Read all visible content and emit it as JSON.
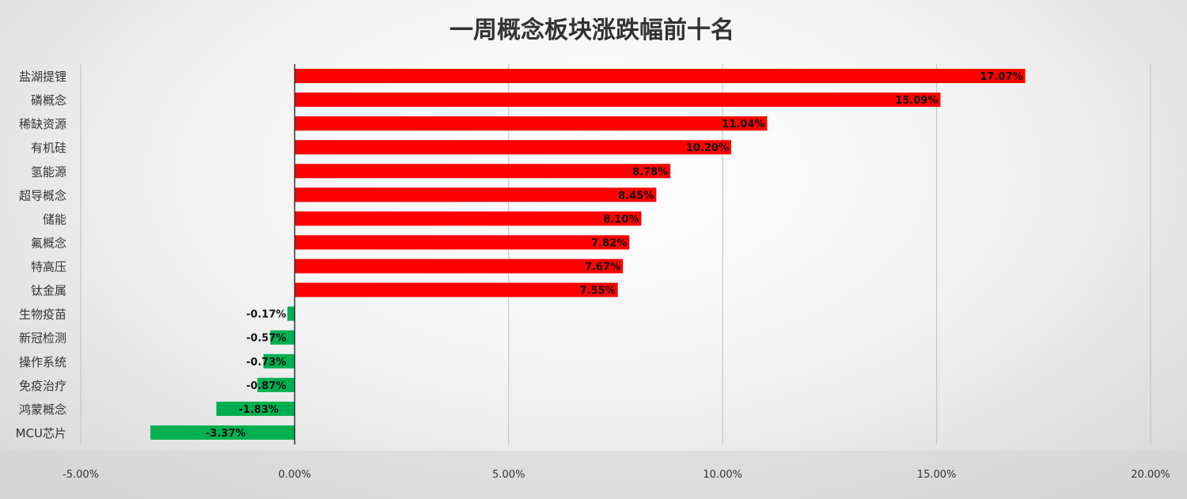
{
  "chart_data": {
    "type": "bar",
    "orientation": "horizontal",
    "title": "一周概念板块涨跌幅前十名",
    "xlabel": "",
    "ylabel": "",
    "categories": [
      "盐湖提锂",
      "磷概念",
      "稀缺资源",
      "有机硅",
      "氢能源",
      "超导概念",
      "储能",
      "氟概念",
      "特高压",
      "钛金属",
      "生物疫苗",
      "新冠检测",
      "操作系统",
      "免疫治疗",
      "鸿蒙概念",
      "MCU芯片"
    ],
    "values": [
      17.07,
      15.09,
      11.04,
      10.2,
      8.78,
      8.45,
      8.1,
      7.82,
      7.67,
      7.55,
      -0.17,
      -0.57,
      -0.73,
      -0.87,
      -1.83,
      -3.37
    ],
    "data_labels": [
      "17.07%",
      "15.09%",
      "11.04%",
      "10.20%",
      "8.78%",
      "8.45%",
      "8.10%",
      "7.82%",
      "7.67%",
      "7.55%",
      "-0.17%",
      "-0.57%",
      "-0.73%",
      "-0.87%",
      "-1.83%",
      "-3.37%"
    ],
    "xlim": [
      -5,
      20
    ],
    "xticks": [
      -5,
      0,
      5,
      10,
      15,
      20
    ],
    "xtick_labels": [
      "-5.00%",
      "0.00%",
      "5.00%",
      "10.00%",
      "15.00%",
      "20.00%"
    ],
    "grid": "vertical",
    "legend": "none",
    "colors": {
      "positive": "#ff0000",
      "negative": "#00b050",
      "gridline": "#bfbfbf",
      "axis": "#333333"
    }
  }
}
